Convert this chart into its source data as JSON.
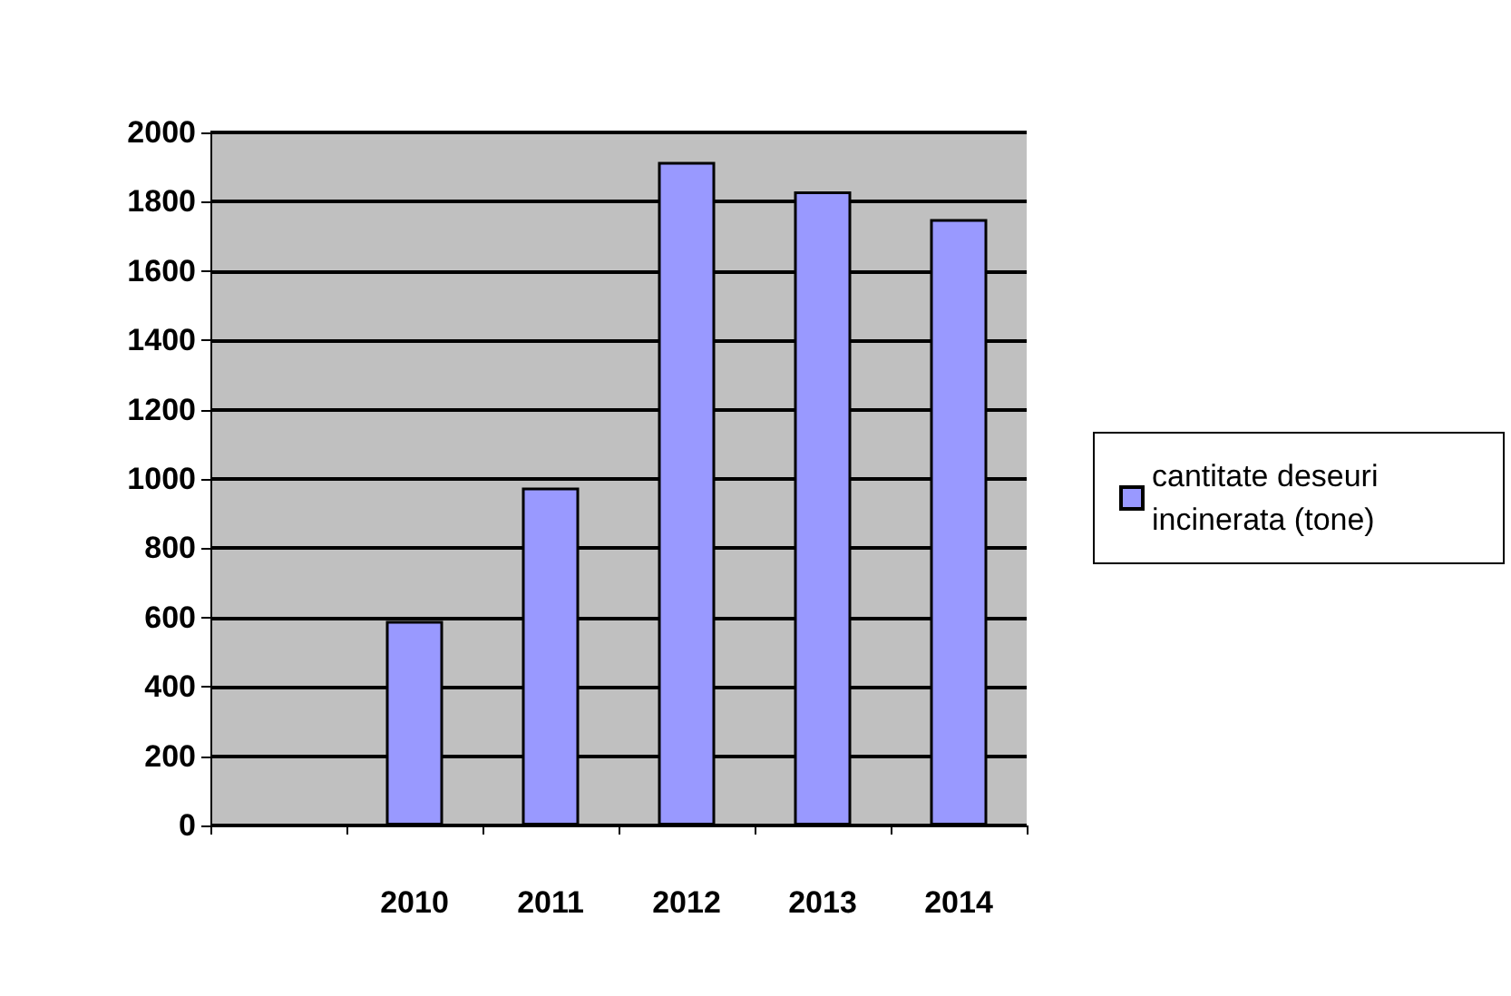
{
  "chart_data": {
    "type": "bar",
    "categories": [
      null,
      "2010",
      "2011",
      "2012",
      "2013",
      "2014"
    ],
    "series": [
      {
        "name": "cantitate deseuri incinerata (tone)",
        "color": "#9999ff",
        "values": [
          null,
          590,
          975,
          1915,
          1830,
          1750
        ]
      }
    ],
    "ylim": [
      0,
      2000
    ],
    "yticks": [
      0,
      200,
      400,
      600,
      800,
      1000,
      1200,
      1400,
      1600,
      1800,
      2000
    ],
    "grid": "y",
    "legend": "right"
  }
}
